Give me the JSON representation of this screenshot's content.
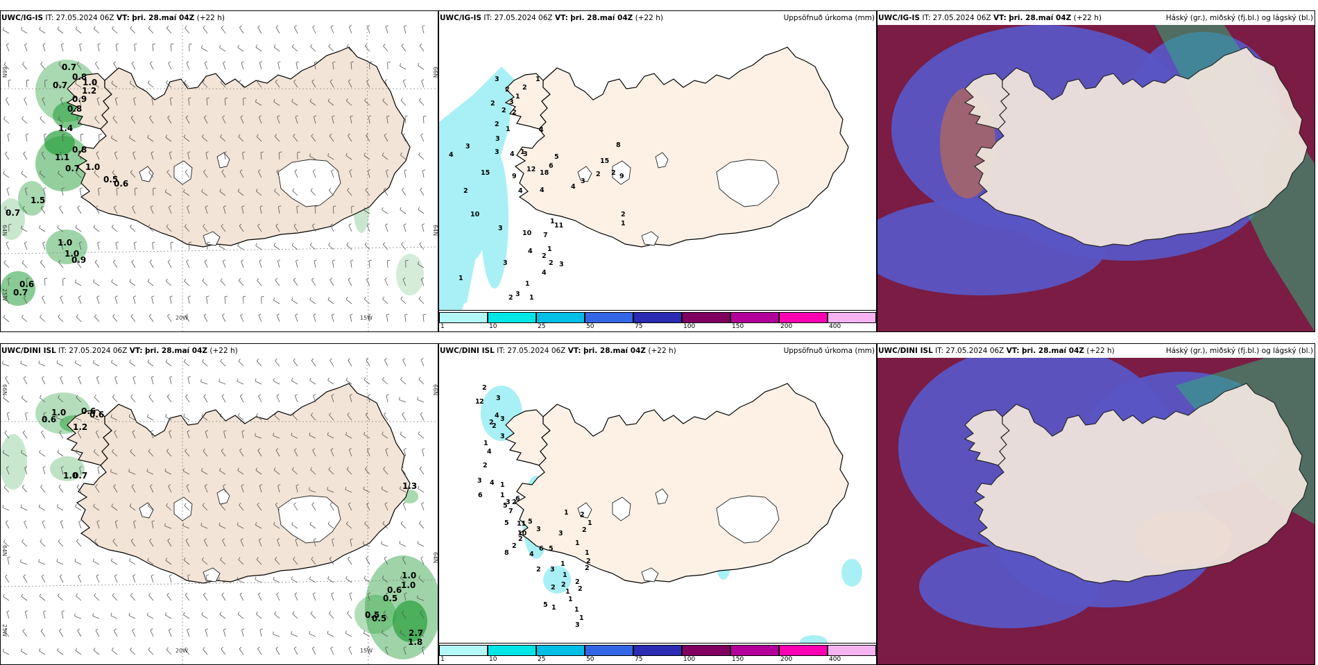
{
  "rows": [
    {
      "model": "UWC/IG-IS",
      "wind_panel": {
        "title_model": "UWC/IG-IS",
        "it": "IT: 27.05.2024 06Z",
        "vt_label": "VT:",
        "vt": "þri. 28.maí 04Z",
        "lead": "(+22 h)",
        "lat_labels": [
          "66N",
          "64N"
        ],
        "lon_labels": [
          "25W",
          "20W",
          "15W"
        ],
        "values": [
          "0.7",
          "0.8",
          "0.7",
          "1.0",
          "0.9",
          "0.8",
          "1.2",
          "1.4",
          "1.1",
          "0.8",
          "0.7",
          "1.0",
          "1.5",
          "0.5",
          "0.6",
          "0.7",
          "1.0",
          "1.0",
          "0.9",
          "0.6",
          "0.7"
        ]
      },
      "precip_panel": {
        "title_model": "UWC/IG-IS",
        "it": "IT: 27.05.2024 06Z",
        "vt_label": "VT:",
        "vt": "þri. 28.maí 04Z",
        "lead": "(+22 h)",
        "right_title": "Uppsöfnuð úrkoma (mm)",
        "values": [
          "3",
          "1",
          "2",
          "2",
          "1",
          "2",
          "3",
          "2",
          "2",
          "1",
          "4",
          "3",
          "2",
          "3",
          "1",
          "4",
          "6",
          "3",
          "5",
          "4",
          "3",
          "12",
          "15",
          "9",
          "18",
          "2",
          "4",
          "10",
          "1",
          "7",
          "10",
          "11",
          "4",
          "3",
          "2",
          "3",
          "1",
          "4",
          "1",
          "3",
          "1",
          "2",
          "1",
          "5",
          "1",
          "2",
          "15",
          "8",
          "2",
          "2",
          "4",
          "3",
          "3",
          "4",
          "9",
          "2",
          "1"
        ]
      },
      "cloud_panel": {
        "title_model": "UWC/IG-IS",
        "it": "IT: 27.05.2024 06Z",
        "vt_label": "VT:",
        "vt": "þri. 28.maí 04Z",
        "lead": "(+22 h)",
        "right_title": "Háský (gr.), miðský (fj.bl.) og lágský (bl.)"
      }
    },
    {
      "model": "UWC/DINI ISL",
      "wind_panel": {
        "title_model": "UWC/DINI ISL",
        "it": "IT: 27.05.2024 06Z",
        "vt_label": "VT:",
        "vt": "þri. 28.maí 04Z",
        "lead": "(+22 h)",
        "lat_labels": [
          "66N",
          "64N"
        ],
        "lon_labels": [
          "25W",
          "20W",
          "15W"
        ],
        "values": [
          "1.0",
          "0.6",
          "0.6",
          "0.6",
          "1.2",
          "1.0",
          "0.7",
          "1.3",
          "1.0",
          "1.0",
          "0.6",
          "0.5",
          "0.5",
          "0.5",
          "2.7",
          "1.8"
        ]
      },
      "precip_panel": {
        "title_model": "UWC/DINI ISL",
        "it": "IT: 27.05.2024 06Z",
        "vt_label": "VT:",
        "vt": "þri. 28.maí 04Z",
        "lead": "(+22 h)",
        "right_title": "Uppsöfnuð úrkoma (mm)",
        "values": [
          "2",
          "1",
          "3",
          "4",
          "3",
          "2",
          "2",
          "2",
          "3",
          "1",
          "4",
          "2",
          "3",
          "4",
          "6",
          "1",
          "1",
          "3",
          "2",
          "6",
          "5",
          "7",
          "5",
          "11",
          "10",
          "8",
          "2",
          "2",
          "5",
          "3",
          "4",
          "3",
          "6",
          "5",
          "2",
          "3",
          "1",
          "1",
          "2",
          "1",
          "2",
          "1",
          "2",
          "2",
          "2",
          "1",
          "1",
          "2",
          "1",
          "1",
          "2",
          "2",
          "1",
          "1",
          "3",
          "5",
          "1",
          "1"
        ]
      },
      "cloud_panel": {
        "title_model": "UWC/DINI ISL",
        "it": "IT: 27.05.2024 06Z",
        "vt_label": "VT:",
        "vt": "þri. 28.maí 04Z",
        "lead": "(+22 h)",
        "right_title": "Háský (gr.), miðský (fj.bl.) og lágský (bl.)"
      }
    }
  ],
  "colorbar": {
    "ticks": [
      "1",
      "10",
      "25",
      "50",
      "75",
      "100",
      "150",
      "200",
      "400"
    ],
    "colors": [
      "#b3f7f7",
      "#00e6e6",
      "#00bfe6",
      "#3366e6",
      "#2b2bb3",
      "#800060",
      "#b3009a",
      "#ff00b3",
      "#f5b3f2"
    ]
  },
  "colors": {
    "land": "#f2e4d6",
    "land_light": "#fdf1e6",
    "glacier": "#ffffff",
    "precip_light": "#a8f0f5",
    "cloud_high": "#7a1c44",
    "cloud_mid": "#5a55c4",
    "cloud_low_green": "#2fae7a"
  }
}
